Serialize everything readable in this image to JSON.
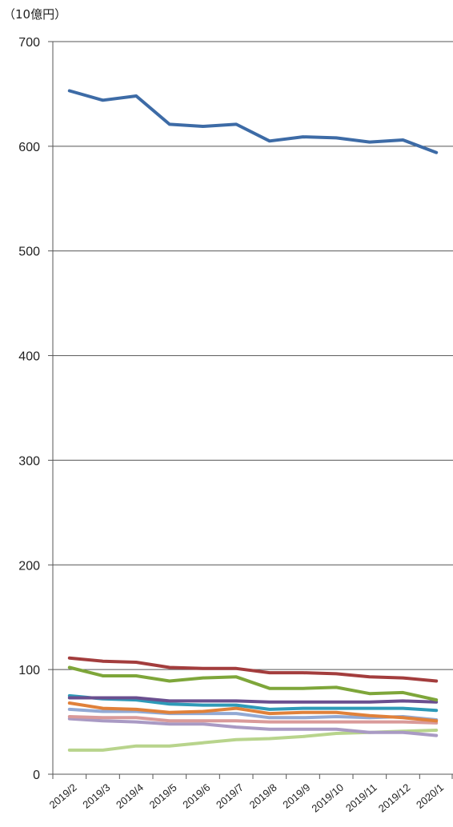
{
  "chart_data": {
    "type": "line",
    "unit_label": "（10億円）",
    "ylim": [
      0,
      700
    ],
    "yticks": [
      "0",
      "100",
      "200",
      "300",
      "400",
      "500",
      "600",
      "700"
    ],
    "grid": true,
    "categories": [
      "2019/2",
      "2019/3",
      "2019/4",
      "2019/5",
      "2019/6",
      "2019/7",
      "2019/8",
      "2019/9",
      "2019/10",
      "2019/11",
      "2019/12",
      "2020/1"
    ],
    "series": [
      {
        "color": "#3d6ba6",
        "values": [
          653,
          644,
          648,
          621,
          619,
          621,
          605,
          609,
          608,
          604,
          606,
          594
        ]
      },
      {
        "color": "#a33d3d",
        "values": [
          111,
          108,
          107,
          102,
          101,
          101,
          97,
          97,
          96,
          93,
          92,
          89
        ]
      },
      {
        "color": "#7ea63a",
        "values": [
          102,
          94,
          94,
          89,
          92,
          93,
          82,
          82,
          83,
          77,
          78,
          71
        ]
      },
      {
        "color": "#6a4f8f",
        "values": [
          73,
          73,
          73,
          70,
          70,
          70,
          69,
          69,
          69,
          69,
          70,
          69
        ]
      },
      {
        "color": "#2e9ab8",
        "values": [
          75,
          72,
          71,
          67,
          66,
          66,
          62,
          63,
          63,
          63,
          63,
          61
        ]
      },
      {
        "color": "#e0813a",
        "values": [
          68,
          63,
          62,
          59,
          60,
          63,
          58,
          59,
          59,
          56,
          54,
          51
        ]
      },
      {
        "color": "#92a9d4",
        "values": [
          62,
          60,
          60,
          58,
          58,
          58,
          54,
          54,
          55,
          54,
          55,
          52
        ]
      },
      {
        "color": "#d99a9a",
        "values": [
          55,
          54,
          54,
          51,
          51,
          51,
          50,
          50,
          50,
          50,
          50,
          49
        ]
      },
      {
        "color": "#a99ac4",
        "values": [
          53,
          51,
          50,
          48,
          48,
          45,
          43,
          43,
          43,
          40,
          40,
          37
        ]
      },
      {
        "color": "#b8d48c",
        "values": [
          23,
          23,
          27,
          27,
          30,
          33,
          34,
          36,
          39,
          40,
          41,
          42
        ]
      }
    ]
  }
}
